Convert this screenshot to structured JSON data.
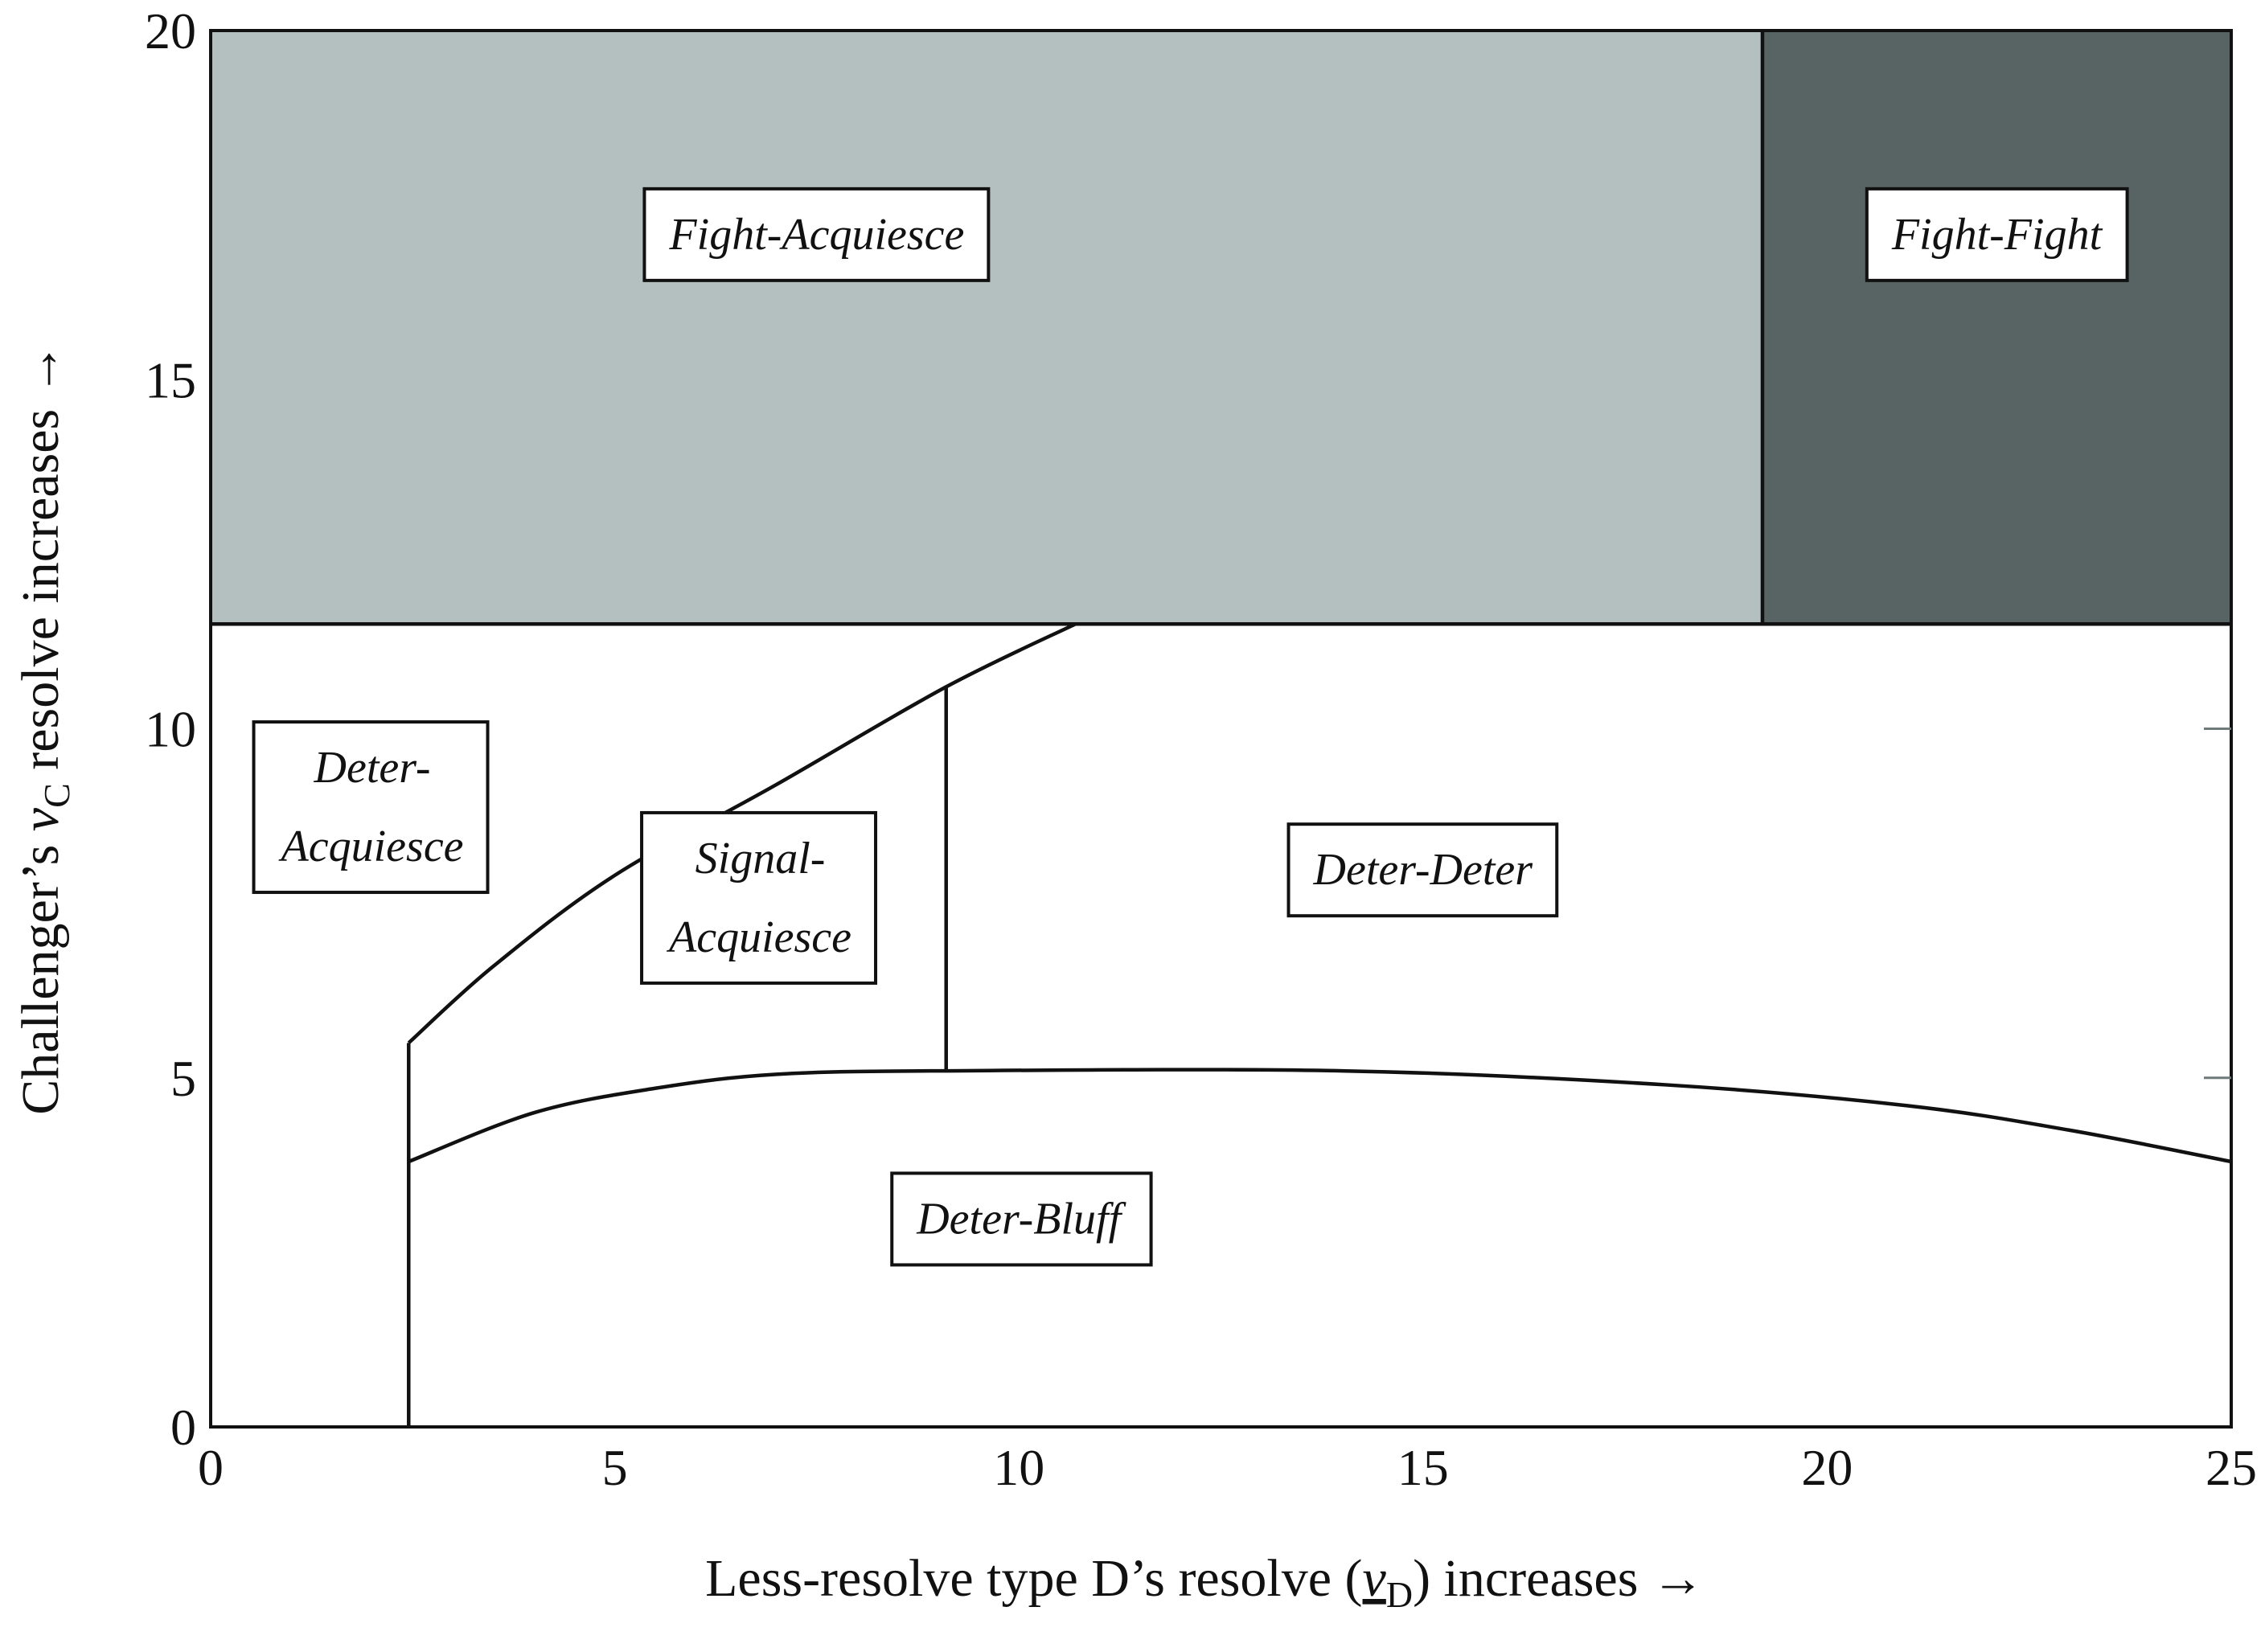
{
  "chart_data": {
    "type": "area",
    "title": "",
    "xlabel": "Less-resolve type D’s resolve (v̲D) increases →",
    "xlabel_parts": {
      "before": "Less-resolve type D’s resolve (",
      "var": "v",
      "sub": "D",
      "after": ") increases →"
    },
    "ylabel": "Challenger’s vC resolve increases →",
    "ylabel_parts": {
      "before": "Challenger’s ",
      "var": "v",
      "sub": "C",
      "after": " resolve increases →"
    },
    "xlim": [
      0,
      25
    ],
    "ylim": [
      0,
      20
    ],
    "xticks": [
      0,
      5,
      10,
      15,
      20,
      25
    ],
    "yticks": [
      0,
      5,
      10,
      15,
      20
    ],
    "grid": false,
    "regions": [
      {
        "name": "Fight-Acquiesce",
        "x": [
          0,
          19.2
        ],
        "y": [
          11.5,
          20
        ],
        "color": "#b4bfbf"
      },
      {
        "name": "Fight-Fight",
        "x": [
          19.2,
          25
        ],
        "y": [
          11.5,
          20
        ],
        "color": "#586363"
      }
    ],
    "boundaries": [
      {
        "name": "fight-threshold",
        "points": [
          [
            0,
            11.5
          ],
          [
            25,
            11.5
          ]
        ]
      },
      {
        "name": "fight-split",
        "points": [
          [
            19.2,
            11.5
          ],
          [
            19.2,
            20
          ]
        ]
      },
      {
        "name": "left-vertical",
        "points": [
          [
            2.45,
            0
          ],
          [
            2.45,
            5.5
          ]
        ]
      },
      {
        "name": "upper-curve",
        "points": [
          [
            2.45,
            5.5
          ],
          [
            3.5,
            6.6
          ],
          [
            5,
            7.9
          ],
          [
            7,
            9.2
          ],
          [
            9.1,
            10.6
          ],
          [
            10.7,
            11.5
          ]
        ]
      },
      {
        "name": "lower-curve",
        "points": [
          [
            2.45,
            3.8
          ],
          [
            4,
            4.5
          ],
          [
            5.5,
            4.85
          ],
          [
            7,
            5.05
          ],
          [
            9.1,
            5.1
          ],
          [
            14,
            5.1
          ],
          [
            18,
            4.9
          ],
          [
            21,
            4.6
          ],
          [
            23,
            4.25
          ],
          [
            25,
            3.8
          ]
        ]
      },
      {
        "name": "signal-split",
        "points": [
          [
            9.1,
            5.1
          ],
          [
            9.1,
            10.6
          ]
        ]
      }
    ],
    "labels": [
      {
        "text": [
          "Fight-Acquiesce"
        ],
        "x": 7.5,
        "y": 17.1
      },
      {
        "text": [
          "Fight-Fight"
        ],
        "x": 22.1,
        "y": 17.1
      },
      {
        "text": [
          "Deter-",
          "Acquiesce"
        ],
        "x": 2.0,
        "y": 8.9
      },
      {
        "text": [
          "Signal-",
          "Acquiesce"
        ],
        "x": 6.8,
        "y": 7.6
      },
      {
        "text": [
          "Deter-Deter"
        ],
        "x": 15.0,
        "y": 8.0
      },
      {
        "text": [
          "Deter-Bluff"
        ],
        "x": 10.0,
        "y": 3.0
      }
    ],
    "right_axis_ticks": [
      5,
      10
    ]
  }
}
